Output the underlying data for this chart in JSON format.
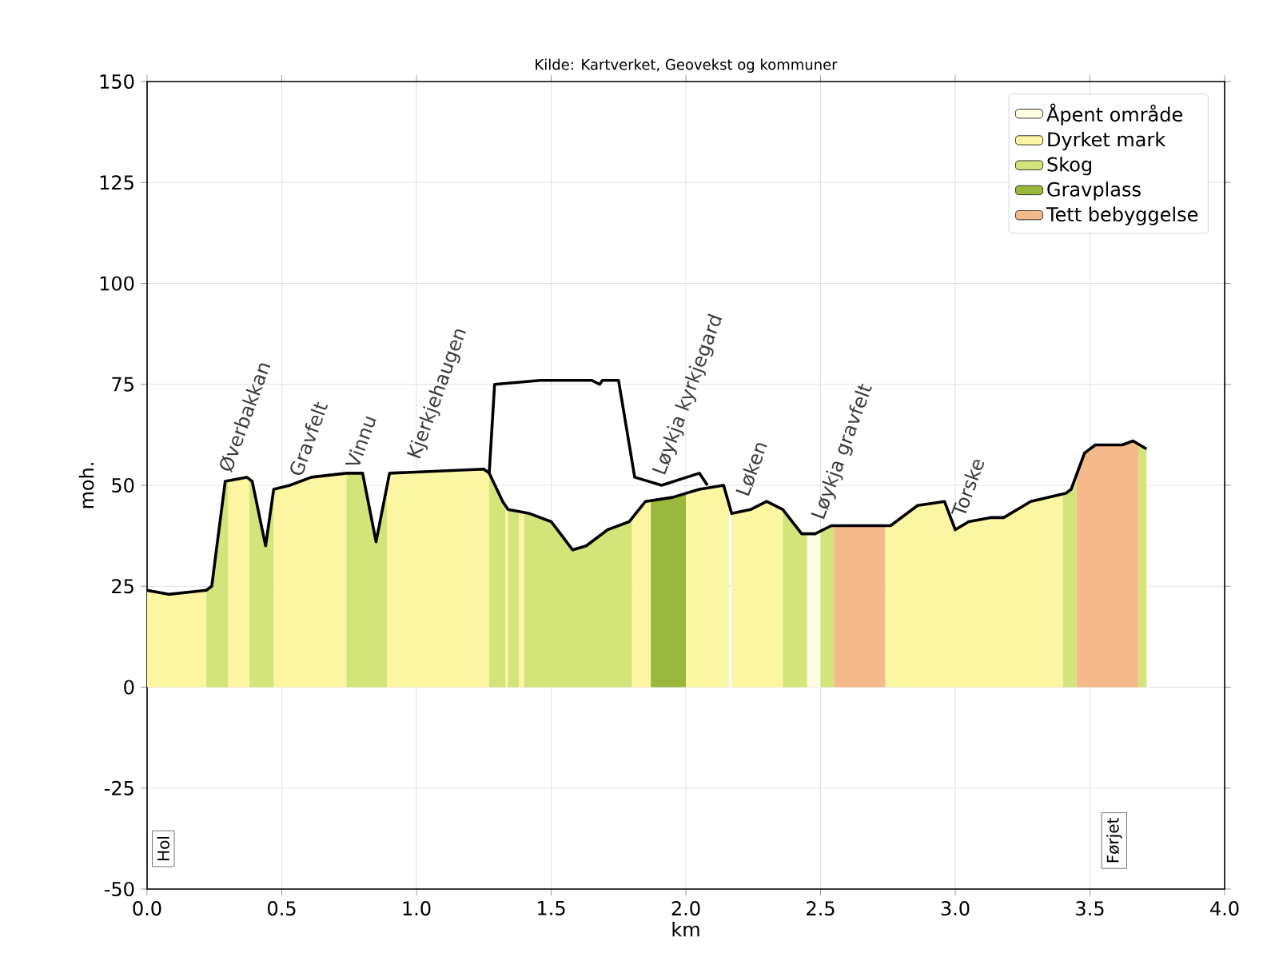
{
  "chart_data": {
    "type": "area",
    "title": "Kilde: Kartverket, Geovekst og kommuner",
    "xlabel": "km",
    "ylabel": "moh.",
    "xlim": [
      0,
      4
    ],
    "ylim": [
      -50,
      150
    ],
    "xticks": [
      {
        "value": 0,
        "label": "0.0"
      },
      {
        "value": 0.5,
        "label": "0.5"
      },
      {
        "value": 1,
        "label": "1.0"
      },
      {
        "value": 1.5,
        "label": "1.5"
      },
      {
        "value": 2,
        "label": "2.0"
      },
      {
        "value": 2.5,
        "label": "2.5"
      },
      {
        "value": 3,
        "label": "3.0"
      },
      {
        "value": 3.5,
        "label": "3.5"
      },
      {
        "value": 4,
        "label": "4.0"
      }
    ],
    "yticks": [
      -50,
      -25,
      0,
      25,
      50,
      75,
      100,
      125,
      150
    ],
    "grid": true,
    "legend": "top right",
    "series": [
      {
        "name": "Åpent område",
        "color": "#fefde0",
        "x": [
          2.45,
          2.48,
          2.5
        ],
        "values": [
          38,
          38,
          39
        ]
      },
      {
        "name": "Dyrket mark",
        "color": "#fcf5a2",
        "x": [
          0,
          0.08,
          0.22,
          null,
          0.3,
          0.37,
          0.38,
          null,
          0.47,
          0.53,
          0.61,
          0.74,
          null,
          0.89,
          0.9,
          1.25,
          1.27,
          null,
          1.33,
          1.34,
          null,
          1.38,
          1.4,
          null,
          1.8,
          1.85,
          1.87,
          null,
          2.0,
          2.05,
          2.14,
          2.16,
          null,
          2.17,
          2.24,
          2.3,
          2.36,
          null,
          2.74,
          2.76,
          2.86,
          2.96,
          3.0,
          3.05,
          3.13,
          3.18,
          3.28,
          3.4
        ],
        "values": [
          24,
          23,
          24,
          null,
          51,
          52,
          51,
          null,
          49,
          50,
          52,
          53,
          null,
          50,
          53,
          54,
          53,
          null,
          45,
          44,
          null,
          43,
          43,
          null,
          42,
          46,
          46,
          null,
          48,
          49,
          50,
          46,
          null,
          43,
          44,
          46,
          44,
          null,
          40,
          40,
          45,
          46,
          39,
          41,
          42,
          42,
          46,
          48
        ]
      },
      {
        "name": "Skog",
        "color": "#d3e47b",
        "x": [
          0.22,
          0.24,
          0.29,
          0.3,
          null,
          0.38,
          0.39,
          0.44,
          0.47,
          null,
          0.74,
          0.8,
          0.85,
          0.89,
          null,
          1.27,
          1.32,
          1.33,
          null,
          1.34,
          1.38,
          null,
          1.4,
          1.42,
          1.5,
          1.58,
          1.63,
          1.71,
          1.79,
          1.8,
          null,
          2.36,
          2.43,
          2.45,
          null,
          2.5,
          2.54,
          2.55,
          null,
          3.4,
          3.41,
          3.43,
          3.45,
          null,
          3.68,
          3.71
        ],
        "values": [
          24,
          25,
          51,
          51,
          null,
          51,
          51,
          35,
          49,
          null,
          53,
          53,
          36,
          50,
          null,
          53,
          46,
          45,
          null,
          44,
          43,
          null,
          43,
          43,
          41,
          34,
          35,
          39,
          41,
          42,
          null,
          44,
          38,
          38,
          null,
          39,
          40,
          40,
          null,
          48,
          48,
          49,
          52,
          null,
          60,
          59
        ]
      },
      {
        "name": "Gravplass",
        "color": "#9ab83b",
        "x": [
          1.87,
          1.95,
          2.0
        ],
        "values": [
          46,
          47,
          48
        ]
      },
      {
        "name": "Tett bebyggelse",
        "color": "#f5ba8b",
        "x": [
          2.55,
          2.74,
          null,
          3.45,
          3.48,
          3.52,
          3.62,
          3.66,
          3.68
        ],
        "values": [
          40,
          40,
          null,
          52,
          58,
          60,
          60,
          61,
          60
        ]
      },
      {
        "type": "line",
        "color": "#000000",
        "x": [
          0,
          0.08,
          0.22,
          0.24,
          0.29,
          0.37,
          0.39,
          0.44,
          0.47,
          0.53,
          0.61,
          0.74,
          0.8,
          0.85,
          0.9,
          1.25,
          1.27,
          1.32,
          1.34,
          1.42,
          1.5,
          1.58,
          1.63,
          1.71,
          1.79,
          1.85,
          1.95,
          2.05,
          2.14,
          2.17,
          2.24,
          2.3,
          2.36,
          2.43,
          2.48,
          2.54,
          2.76,
          2.86,
          2.96,
          3.0,
          3.05,
          3.13,
          3.18,
          3.28,
          3.41,
          3.43,
          3.48,
          3.52,
          3.62,
          3.66,
          3.71
        ],
        "values": [
          24,
          23,
          24,
          25,
          51,
          52,
          51,
          35,
          49,
          50,
          52,
          53,
          53,
          36,
          53,
          54,
          53,
          46,
          44,
          43,
          41,
          34,
          35,
          39,
          41,
          46,
          47,
          49,
          50,
          43,
          44,
          46,
          44,
          38,
          38,
          40,
          40,
          45,
          46,
          39,
          41,
          42,
          42,
          46,
          48,
          49,
          58,
          60,
          60,
          61,
          59
        ]
      },
      {
        "type": "line",
        "color": "#000000",
        "x": [
          1.27,
          1.29,
          1.46,
          1.65,
          1.68,
          1.69,
          1.75,
          1.81,
          1.91,
          2.05,
          2.08
        ],
        "values": [
          53,
          75,
          76,
          76,
          75,
          76,
          76,
          52,
          50,
          53,
          50
        ]
      }
    ],
    "annotations": [
      {
        "text": "Øverbakkan",
        "x": 0.33,
        "y": 52
      },
      {
        "text": "Gravfelt",
        "x": 0.59,
        "y": 51
      },
      {
        "text": "Vinnu",
        "x": 0.8,
        "y": 53
      },
      {
        "text": "Kjerkjehaugen",
        "x": 1.04,
        "y": 55
      },
      {
        "text": "Løykja kyrkjegard",
        "x": 1.95,
        "y": 51
      },
      {
        "text": "Løken",
        "x": 2.25,
        "y": 46
      },
      {
        "text": "Løykja gravfelt",
        "x": 2.54,
        "y": 40
      },
      {
        "text": "Torske",
        "x": 3.05,
        "y": 41
      },
      {
        "text": "Hol",
        "x": 0.06,
        "y": -40
      },
      {
        "text": "Førjet",
        "x": 3.59,
        "y": -38
      }
    ]
  }
}
